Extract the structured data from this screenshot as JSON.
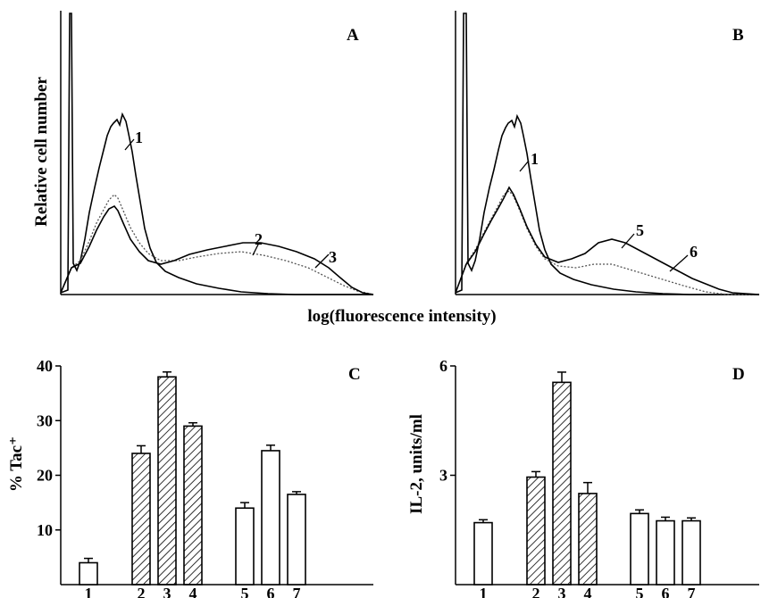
{
  "chart_data": [
    {
      "panel": "A",
      "type": "line",
      "xlabel": "log(fluorescence intensity)",
      "ylabel": "Relative cell number",
      "curve_labels": [
        "1",
        "2",
        "3"
      ]
    },
    {
      "panel": "B",
      "type": "line",
      "xlabel": "log(fluorescence intensity)",
      "ylabel": "",
      "curve_labels": [
        "1",
        "5",
        "6"
      ]
    },
    {
      "panel": "C",
      "type": "bar",
      "ylabel": "% Tac⁺",
      "ylim": [
        0,
        40
      ],
      "yticks": [
        "10",
        "20",
        "30",
        "40"
      ],
      "categories": [
        "1",
        "2",
        "3",
        "4",
        "5",
        "6",
        "7"
      ],
      "values": [
        4,
        24,
        38,
        29,
        14,
        24.5,
        16.5
      ],
      "errors": [
        0.8,
        1.4,
        0.9,
        0.6,
        1.0,
        1.0,
        0.5
      ],
      "fills": [
        "open",
        "hatched",
        "hatched",
        "hatched",
        "open",
        "open",
        "open"
      ]
    },
    {
      "panel": "D",
      "type": "bar",
      "ylabel": "IL-2, units/ml",
      "ylim": [
        0,
        6
      ],
      "yticks": [
        "3",
        "6"
      ],
      "categories": [
        "1",
        "2",
        "3",
        "4",
        "5",
        "6",
        "7"
      ],
      "values": [
        1.7,
        2.95,
        5.55,
        2.5,
        1.95,
        1.75,
        1.75
      ],
      "errors": [
        0.08,
        0.15,
        0.28,
        0.3,
        0.1,
        0.1,
        0.08
      ],
      "fills": [
        "open",
        "hatched",
        "hatched",
        "hatched",
        "open",
        "open",
        "open"
      ]
    }
  ]
}
